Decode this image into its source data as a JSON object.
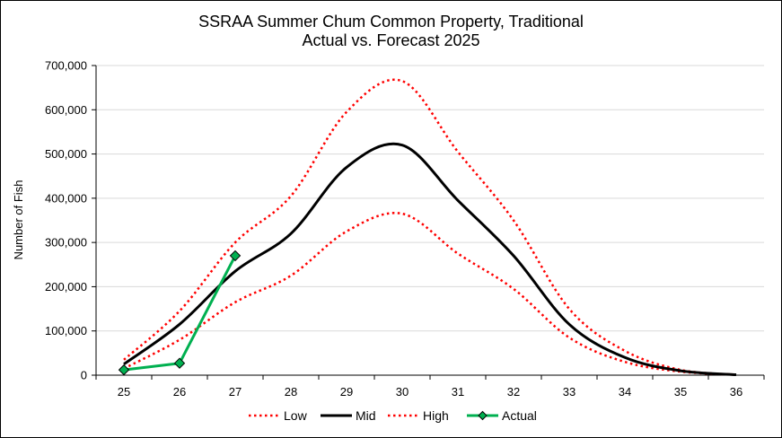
{
  "chart_data": {
    "type": "line",
    "title_line1": "SSRAA Summer Chum Common Property, Traditional",
    "title_line2": "Actual vs. Forecast 2025",
    "xlabel": "",
    "ylabel": "Number of Fish",
    "xlim": [
      25,
      36
    ],
    "ylim": [
      0,
      700000
    ],
    "x_ticks": [
      "25",
      "26",
      "27",
      "28",
      "29",
      "30",
      "31",
      "32",
      "33",
      "34",
      "35",
      "36"
    ],
    "y_ticks": [
      "0",
      "100,000",
      "200,000",
      "300,000",
      "400,000",
      "500,000",
      "600,000",
      "700,000"
    ],
    "grid": "horizontal",
    "legend_position": "bottom",
    "series": [
      {
        "name": "Low",
        "color": "#ff0000",
        "style": "dotted",
        "x": [
          25,
          26,
          27,
          28,
          29,
          30,
          31,
          32,
          33,
          34,
          35,
          36
        ],
        "y": [
          15000,
          80000,
          165000,
          225000,
          325000,
          365000,
          275000,
          195000,
          85000,
          30000,
          8000,
          1000
        ]
      },
      {
        "name": "Mid",
        "color": "#000000",
        "style": "solid",
        "x": [
          25,
          26,
          27,
          28,
          29,
          30,
          31,
          32,
          33,
          34,
          35,
          36
        ],
        "y": [
          25000,
          115000,
          235000,
          320000,
          470000,
          520000,
          395000,
          270000,
          115000,
          40000,
          10000,
          1000
        ]
      },
      {
        "name": "High",
        "color": "#ff0000",
        "style": "dotted",
        "x": [
          25,
          26,
          27,
          28,
          29,
          30,
          31,
          32,
          33,
          34,
          35,
          36
        ],
        "y": [
          35000,
          145000,
          300000,
          405000,
          595000,
          665000,
          505000,
          350000,
          150000,
          55000,
          12000,
          1000
        ]
      },
      {
        "name": "Actual",
        "color": "#00b050",
        "style": "solid",
        "marker": "diamond",
        "x": [
          25,
          26,
          27
        ],
        "y": [
          12000,
          27000,
          270000
        ]
      }
    ]
  }
}
